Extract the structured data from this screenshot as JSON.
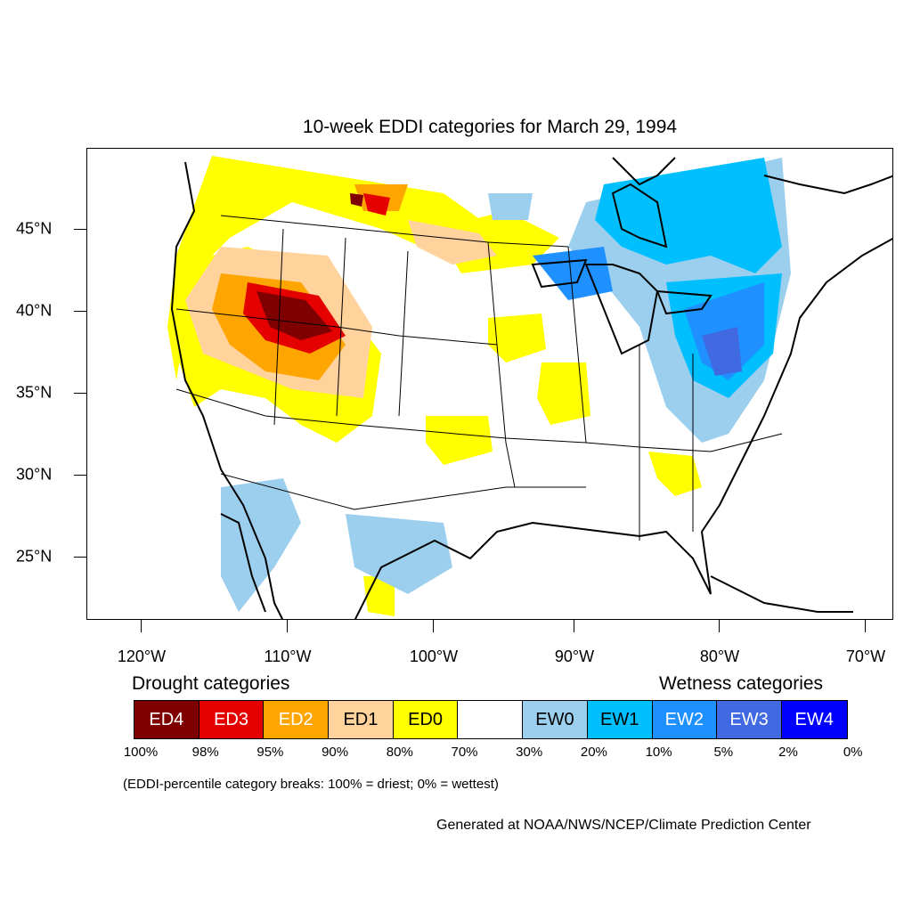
{
  "title": "10-week EDDI categories for March 29, 1994",
  "lat_labels": [
    "45°N",
    "40°N",
    "35°N",
    "30°N",
    "25°N"
  ],
  "lon_labels": [
    "120°W",
    "110°W",
    "100°W",
    "90°W",
    "80°W",
    "70°W"
  ],
  "legend": {
    "drought_heading": "Drought categories",
    "wetness_heading": "Wetness categories",
    "categories": [
      {
        "label": "ED4",
        "color": "#7f0000",
        "text_color": "#ffffff"
      },
      {
        "label": "ED3",
        "color": "#e50000",
        "text_color": "#ffffff"
      },
      {
        "label": "ED2",
        "color": "#ffa500",
        "text_color": "#ffffff"
      },
      {
        "label": "ED1",
        "color": "#ffd39b",
        "text_color": "#000000"
      },
      {
        "label": "ED0",
        "color": "#ffff00",
        "text_color": "#000000"
      },
      {
        "label": "",
        "color": "#ffffff",
        "text_color": "#000000"
      },
      {
        "label": "EW0",
        "color": "#9ccfee",
        "text_color": "#000000"
      },
      {
        "label": "EW1",
        "color": "#00bfff",
        "text_color": "#000000"
      },
      {
        "label": "EW2",
        "color": "#1e90ff",
        "text_color": "#ffffff"
      },
      {
        "label": "EW3",
        "color": "#4169e1",
        "text_color": "#ffffff"
      },
      {
        "label": "EW4",
        "color": "#0000ff",
        "text_color": "#ffffff"
      }
    ],
    "breaks": [
      "100%",
      "98%",
      "95%",
      "90%",
      "80%",
      "70%",
      "30%",
      "20%",
      "10%",
      "5%",
      "2%",
      "0%"
    ]
  },
  "note": "(EDDI-percentile category breaks: 100% = driest; 0% = wettest)",
  "credit": "Generated at NOAA/NWS/NCEP/Climate Prediction Center"
}
